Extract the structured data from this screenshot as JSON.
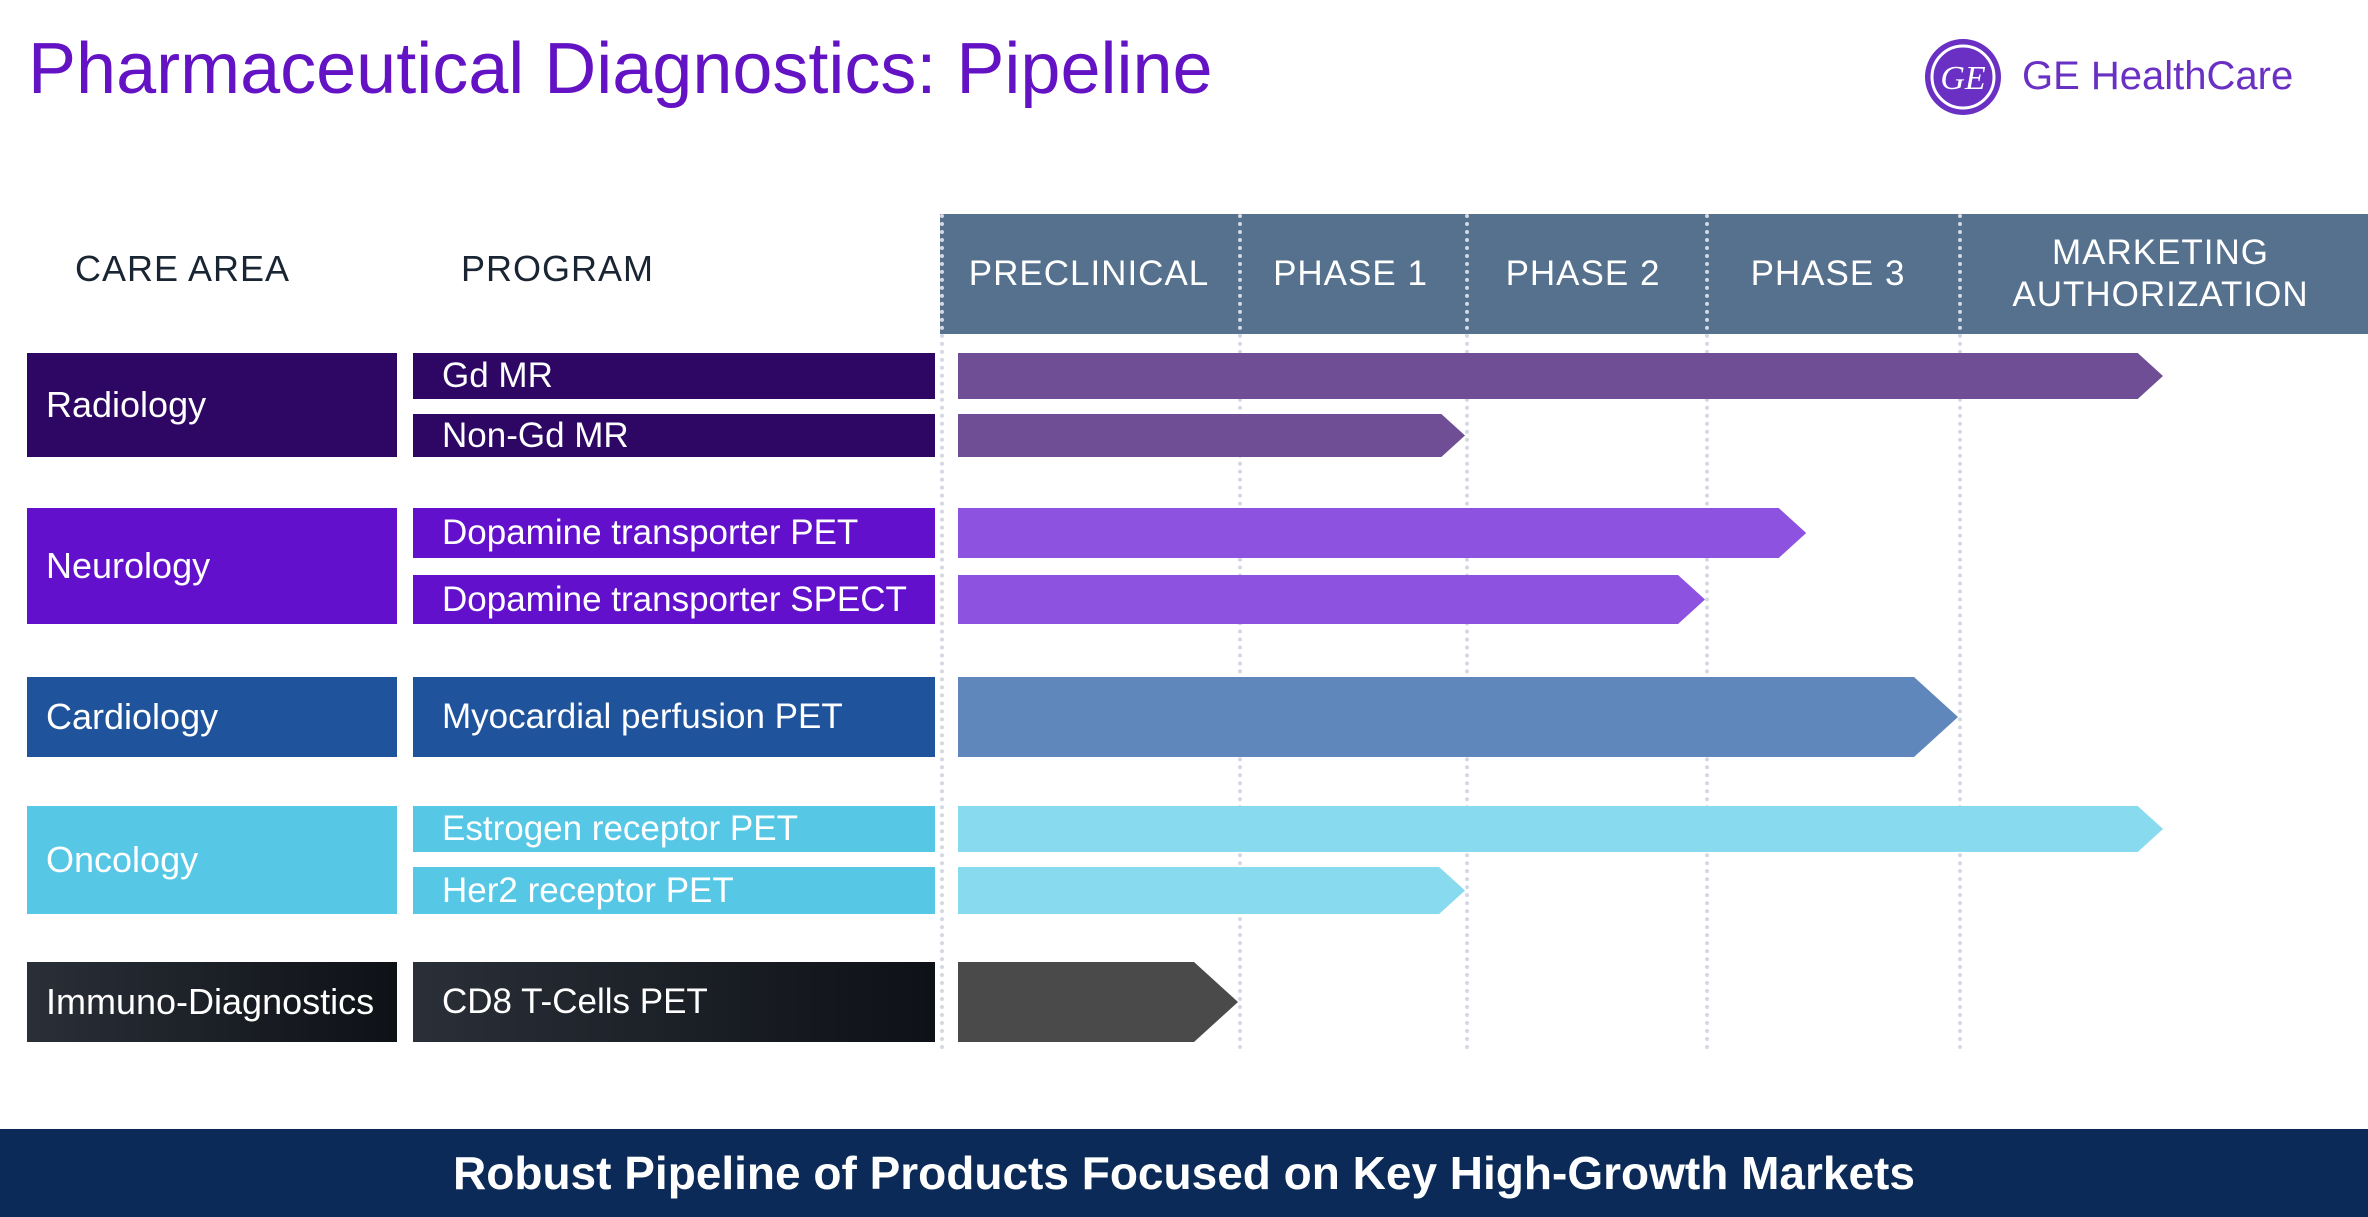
{
  "title": "Pharmaceutical Diagnostics: Pipeline",
  "logo": {
    "monogram": "GE",
    "text": "GE HealthCare"
  },
  "headers": {
    "care_area": "CARE AREA",
    "program": "PROGRAM"
  },
  "phases": [
    "PRECLINICAL",
    "PHASE 1",
    "PHASE 2",
    "PHASE 3",
    "MARKETING\nAUTHORIZATION"
  ],
  "footer": "Robust Pipeline of Products Focused on Key High-Growth Markets",
  "colors": {
    "title": "#6312c4",
    "phase_header": "#55718d",
    "footer": "#0b2a57",
    "radiology": "#2e0764",
    "radiology_bar": "#6f4e96",
    "neurology": "#6310cc",
    "neurology_bar": "#8d52e0",
    "cardiology": "#1f539c",
    "cardiology_bar": "#6087bb",
    "oncology": "#56c8e6",
    "oncology_bar": "#88daef",
    "immuno_start": "#2a2f38",
    "immuno_end": "#0e1116",
    "immuno_bar": "#4a4a4a"
  },
  "chart_data": {
    "type": "bar",
    "x_scale": "ordinal phases",
    "categories": [
      "PRECLINICAL",
      "PHASE 1",
      "PHASE 2",
      "PHASE 3",
      "MARKETING AUTHORIZATION"
    ],
    "care_areas": [
      {
        "name": "Radiology",
        "color_key": "radiology",
        "programs": [
          {
            "name": "Gd MR",
            "progress": 4.5
          },
          {
            "name": "Non-Gd MR",
            "progress": 2.0
          }
        ]
      },
      {
        "name": "Neurology",
        "color_key": "neurology",
        "programs": [
          {
            "name": "Dopamine transporter PET",
            "progress": 3.4
          },
          {
            "name": "Dopamine transporter SPECT",
            "progress": 3.0
          }
        ]
      },
      {
        "name": "Cardiology",
        "color_key": "cardiology",
        "programs": [
          {
            "name": "Myocardial perfusion PET",
            "progress": 4.0
          }
        ]
      },
      {
        "name": "Oncology",
        "color_key": "oncology",
        "programs": [
          {
            "name": "Estrogen receptor PET",
            "progress": 4.5
          },
          {
            "name": "Her2 receptor PET",
            "progress": 2.0
          }
        ]
      },
      {
        "name": "Immuno-Diagnostics",
        "color_key": "immuno",
        "programs": [
          {
            "name": "CD8 T-Cells PET",
            "progress": 1.0
          }
        ]
      }
    ]
  }
}
